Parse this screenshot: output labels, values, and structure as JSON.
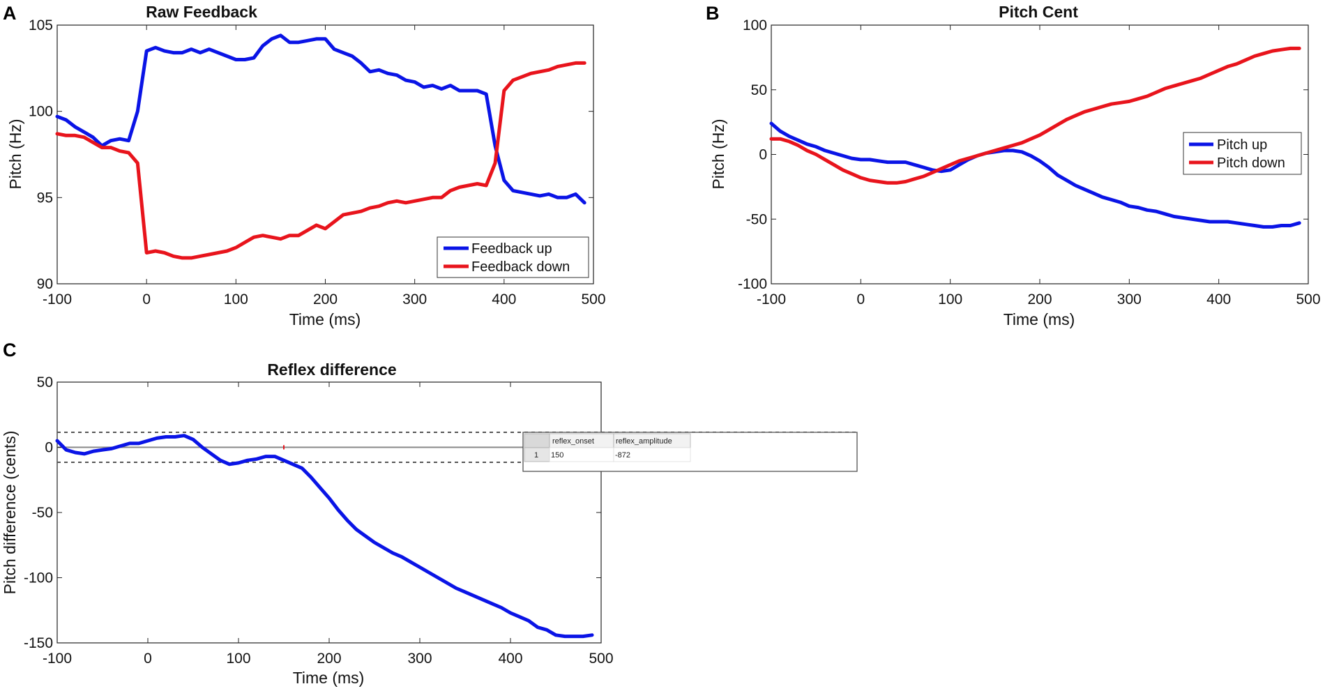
{
  "colors": {
    "blue": "#0a14e6",
    "red": "#e8141c",
    "axis": "#222222",
    "grid_dash": "#555555"
  },
  "chart_data": [
    {
      "id": "A",
      "panel_label": "A",
      "type": "line",
      "title": "Raw Feedback",
      "xlabel": "Time (ms)",
      "ylabel": "Pitch (Hz)",
      "xlim": [
        -100,
        500
      ],
      "ylim": [
        90,
        105
      ],
      "xticks": [
        "-100",
        "0",
        "100",
        "200",
        "300",
        "400",
        "500"
      ],
      "yticks": [
        "90",
        "95",
        "100",
        "105"
      ],
      "legend_position": "bottom-right",
      "series": [
        {
          "name": "Feedback up",
          "color": "#0a14e6",
          "x": [
            -100,
            -90,
            -80,
            -70,
            -60,
            -50,
            -40,
            -30,
            -20,
            -10,
            0,
            10,
            20,
            30,
            40,
            50,
            60,
            70,
            80,
            90,
            100,
            110,
            120,
            130,
            140,
            150,
            160,
            170,
            180,
            190,
            200,
            210,
            220,
            230,
            240,
            250,
            260,
            270,
            280,
            290,
            300,
            310,
            320,
            330,
            340,
            350,
            360,
            370,
            380,
            390,
            400,
            410,
            420,
            430,
            440,
            450,
            460,
            470,
            480,
            490
          ],
          "y": [
            99.7,
            99.5,
            99.1,
            98.8,
            98.5,
            98.0,
            98.3,
            98.4,
            98.3,
            100.0,
            103.5,
            103.7,
            103.5,
            103.4,
            103.4,
            103.6,
            103.4,
            103.6,
            103.4,
            103.2,
            103.0,
            103.0,
            103.1,
            103.8,
            104.2,
            104.4,
            104.0,
            104.0,
            104.1,
            104.2,
            104.2,
            103.6,
            103.4,
            103.2,
            102.8,
            102.3,
            102.4,
            102.2,
            102.1,
            101.8,
            101.7,
            101.4,
            101.5,
            101.3,
            101.5,
            101.2,
            101.2,
            101.2,
            101.0,
            98.0,
            96.0,
            95.4,
            95.3,
            95.2,
            95.1,
            95.2,
            95.0,
            95.0,
            95.2,
            94.7
          ]
        },
        {
          "name": "Feedback down",
          "color": "#e8141c",
          "x": [
            -100,
            -90,
            -80,
            -70,
            -60,
            -50,
            -40,
            -30,
            -20,
            -10,
            0,
            10,
            20,
            30,
            40,
            50,
            60,
            70,
            80,
            90,
            100,
            110,
            120,
            130,
            140,
            150,
            160,
            170,
            180,
            190,
            200,
            210,
            220,
            230,
            240,
            250,
            260,
            270,
            280,
            290,
            300,
            310,
            320,
            330,
            340,
            350,
            360,
            370,
            380,
            390,
            400,
            410,
            420,
            430,
            440,
            450,
            460,
            470,
            480,
            490
          ],
          "y": [
            98.7,
            98.6,
            98.6,
            98.5,
            98.2,
            97.9,
            97.9,
            97.7,
            97.6,
            97.0,
            91.8,
            91.9,
            91.8,
            91.6,
            91.5,
            91.5,
            91.6,
            91.7,
            91.8,
            91.9,
            92.1,
            92.4,
            92.7,
            92.8,
            92.7,
            92.6,
            92.8,
            92.8,
            93.1,
            93.4,
            93.2,
            93.6,
            94.0,
            94.1,
            94.2,
            94.4,
            94.5,
            94.7,
            94.8,
            94.7,
            94.8,
            94.9,
            95.0,
            95.0,
            95.4,
            95.6,
            95.7,
            95.8,
            95.7,
            97.0,
            101.2,
            101.8,
            102.0,
            102.2,
            102.3,
            102.4,
            102.6,
            102.7,
            102.8,
            102.8
          ]
        }
      ]
    },
    {
      "id": "B",
      "panel_label": "B",
      "type": "line",
      "title": "Pitch Cent",
      "xlabel": "Time (ms)",
      "ylabel": "Pitch (Hz)",
      "xlim": [
        -100,
        500
      ],
      "ylim": [
        -100,
        100
      ],
      "xticks": [
        "-100",
        "0",
        "100",
        "200",
        "300",
        "400",
        "500"
      ],
      "yticks": [
        "-100",
        "-50",
        "0",
        "50",
        "100"
      ],
      "legend_position": "middle-right",
      "series": [
        {
          "name": "Pitch up",
          "color": "#0a14e6",
          "x": [
            -100,
            -90,
            -80,
            -70,
            -60,
            -50,
            -40,
            -30,
            -20,
            -10,
            0,
            10,
            20,
            30,
            40,
            50,
            60,
            70,
            80,
            90,
            100,
            110,
            120,
            130,
            140,
            150,
            160,
            170,
            180,
            190,
            200,
            210,
            220,
            230,
            240,
            250,
            260,
            270,
            280,
            290,
            300,
            310,
            320,
            330,
            340,
            350,
            360,
            370,
            380,
            390,
            400,
            410,
            420,
            430,
            440,
            450,
            460,
            470,
            480,
            490
          ],
          "y": [
            24,
            18,
            14,
            11,
            8,
            6,
            3,
            1,
            -1,
            -3,
            -4,
            -4,
            -5,
            -6,
            -6,
            -6,
            -8,
            -10,
            -12,
            -13,
            -12,
            -8,
            -4,
            -1,
            1,
            2,
            3,
            3,
            2,
            -1,
            -5,
            -10,
            -16,
            -20,
            -24,
            -27,
            -30,
            -33,
            -35,
            -37,
            -40,
            -41,
            -43,
            -44,
            -46,
            -48,
            -49,
            -50,
            -51,
            -52,
            -52,
            -52,
            -53,
            -54,
            -55,
            -56,
            -56,
            -55,
            -55,
            -53
          ]
        },
        {
          "name": "Pitch down",
          "color": "#e8141c",
          "x": [
            -100,
            -90,
            -80,
            -70,
            -60,
            -50,
            -40,
            -30,
            -20,
            -10,
            0,
            10,
            20,
            30,
            40,
            50,
            60,
            70,
            80,
            90,
            100,
            110,
            120,
            130,
            140,
            150,
            160,
            170,
            180,
            190,
            200,
            210,
            220,
            230,
            240,
            250,
            260,
            270,
            280,
            290,
            300,
            310,
            320,
            330,
            340,
            350,
            360,
            370,
            380,
            390,
            400,
            410,
            420,
            430,
            440,
            450,
            460,
            470,
            480,
            490
          ],
          "y": [
            12,
            12,
            10,
            7,
            3,
            0,
            -4,
            -8,
            -12,
            -15,
            -18,
            -20,
            -21,
            -22,
            -22,
            -21,
            -19,
            -17,
            -14,
            -11,
            -8,
            -5,
            -3,
            -1,
            1,
            3,
            5,
            7,
            9,
            12,
            15,
            19,
            23,
            27,
            30,
            33,
            35,
            37,
            39,
            40,
            41,
            43,
            45,
            48,
            51,
            53,
            55,
            57,
            59,
            62,
            65,
            68,
            70,
            73,
            76,
            78,
            80,
            81,
            82,
            82
          ]
        }
      ]
    },
    {
      "id": "C",
      "panel_label": "C",
      "type": "line",
      "title": "Reflex difference",
      "xlabel": "Time (ms)",
      "ylabel": "Pitch difference (cents)",
      "xlim": [
        -100,
        500
      ],
      "ylim": [
        -150,
        50
      ],
      "xticks": [
        "-100",
        "0",
        "100",
        "200",
        "300",
        "400",
        "500"
      ],
      "yticks": [
        "-150",
        "-100",
        "-50",
        "0",
        "50"
      ],
      "threshold_lines": [
        11.5,
        -11.5
      ],
      "zero_line": 0,
      "onset_marker_x": 150,
      "series": [
        {
          "name": "Reflex difference",
          "color": "#0a14e6",
          "x": [
            -100,
            -90,
            -80,
            -70,
            -60,
            -50,
            -40,
            -30,
            -20,
            -10,
            0,
            10,
            20,
            30,
            40,
            50,
            60,
            70,
            80,
            90,
            100,
            110,
            120,
            130,
            140,
            150,
            160,
            170,
            180,
            190,
            200,
            210,
            220,
            230,
            240,
            250,
            260,
            270,
            280,
            290,
            300,
            310,
            320,
            330,
            340,
            350,
            360,
            370,
            380,
            390,
            400,
            410,
            420,
            430,
            440,
            450,
            460,
            470,
            480,
            490
          ],
          "y": [
            5,
            -2,
            -4,
            -5,
            -3,
            -2,
            -1,
            1,
            3,
            3,
            5,
            7,
            8,
            8,
            9,
            6,
            0,
            -5,
            -10,
            -13,
            -12,
            -10,
            -9,
            -7,
            -7,
            -10,
            -13,
            -16,
            -23,
            -31,
            -39,
            -48,
            -56,
            -63,
            -68,
            -73,
            -77,
            -81,
            -84,
            -88,
            -92,
            -96,
            -100,
            -104,
            -108,
            -111,
            -114,
            -117,
            -120,
            -123,
            -127,
            -130,
            -133,
            -138,
            -140,
            -144,
            -145,
            -145,
            -145,
            -144
          ]
        }
      ]
    }
  ],
  "result_table": {
    "columns": [
      "reflex_onset",
      "reflex_amplitude"
    ],
    "rows": [
      {
        "index": "1",
        "reflex_onset": "150",
        "reflex_amplitude": "-872"
      }
    ]
  }
}
